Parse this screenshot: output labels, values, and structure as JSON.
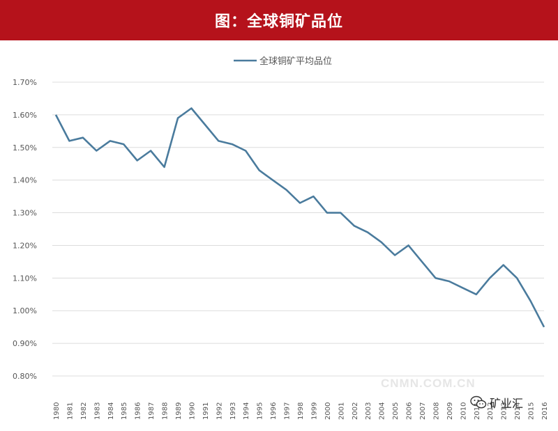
{
  "header": {
    "title": "图：全球铜矿品位"
  },
  "watermark": {
    "text": "CNMN.COM.CN"
  },
  "wechat_badge": {
    "label": "矿业汇",
    "icon": "wechat-icon"
  },
  "colors": {
    "banner": "#b5121b",
    "series": "#4a7b9d",
    "grid": "#dcdcdc"
  },
  "chart_data": {
    "type": "line",
    "title": "",
    "xlabel": "",
    "ylabel": "",
    "legend": "top-center",
    "grid": true,
    "ylim": [
      0.008,
      0.017
    ],
    "yticks": [
      "0.80%",
      "0.90%",
      "1.00%",
      "1.10%",
      "1.20%",
      "1.30%",
      "1.40%",
      "1.50%",
      "1.60%",
      "1.70%"
    ],
    "categories": [
      "1980",
      "1981",
      "1982",
      "1983",
      "1984",
      "1985",
      "1986",
      "1987",
      "1988",
      "1989",
      "1990",
      "1991",
      "1992",
      "1993",
      "1994",
      "1995",
      "1996",
      "1997",
      "1998",
      "1999",
      "2000",
      "2001",
      "2002",
      "2003",
      "2004",
      "2005",
      "2006",
      "2007",
      "2008",
      "2009",
      "2010",
      "2011",
      "2012",
      "2013",
      "2014",
      "2015",
      "2016"
    ],
    "series": [
      {
        "name": "全球铜矿平均品位",
        "values": [
          0.016,
          0.0152,
          0.0153,
          0.0149,
          0.0152,
          0.0151,
          0.0146,
          0.0149,
          0.0144,
          0.0159,
          0.0162,
          0.0157,
          0.0152,
          0.0151,
          0.0149,
          0.0143,
          0.014,
          0.0137,
          0.0133,
          0.0135,
          0.013,
          0.013,
          0.0126,
          0.0124,
          0.0121,
          0.0117,
          0.012,
          0.0115,
          0.011,
          0.0109,
          0.0107,
          0.0105,
          0.011,
          0.0114,
          0.011,
          0.0103,
          0.0095
        ]
      }
    ]
  }
}
